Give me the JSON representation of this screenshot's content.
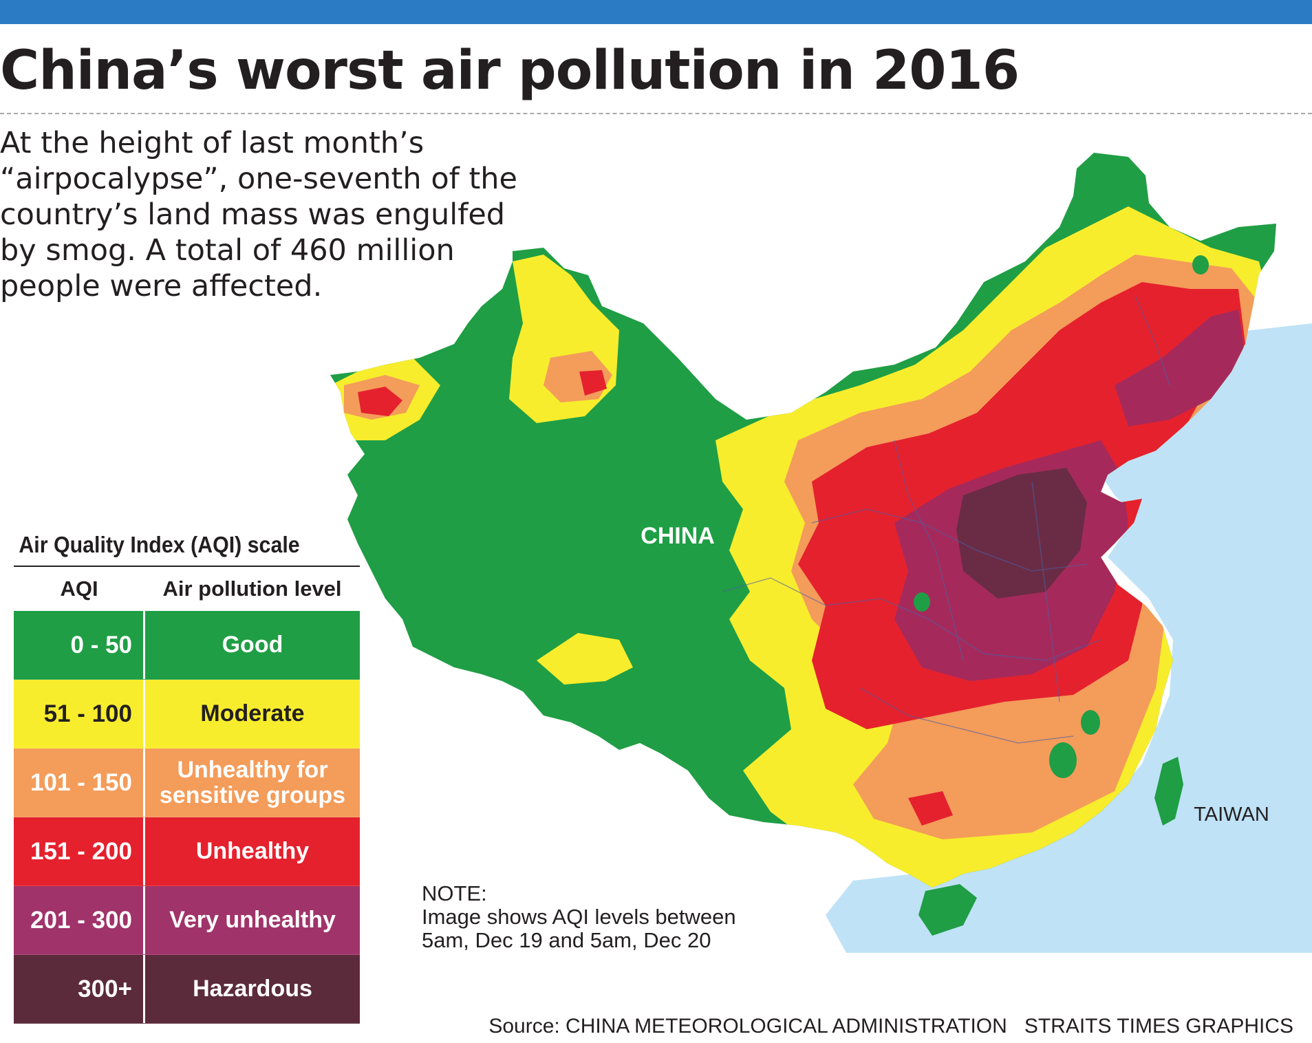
{
  "header": {
    "title": "China’s worst air pollution in 2016",
    "intro": "At the height of last month’s “airpocalypse”, one-seventh of the country’s land mass was engulfed by smog. A total of 460 million people were affected."
  },
  "colors": {
    "top_bar": "#2a7bc4",
    "sea": "#bfe2f6",
    "good": "#1f9e45",
    "moderate": "#f7ed2d",
    "usg": "#f49c5a",
    "unhealthy": "#e5212e",
    "very_unhealthy": "#a52a5b",
    "hazardous": "#5a2a3a"
  },
  "map": {
    "labels": {
      "country": "CHINA",
      "island": "TAIWAN"
    }
  },
  "legend": {
    "title": "Air Quality Index (AQI) scale",
    "col_aqi": "AQI",
    "col_level": "Air pollution level",
    "rows": [
      {
        "range": "0 - 50",
        "level": "Good",
        "bg": "#1f9e45",
        "fg": "#ffffff"
      },
      {
        "range": "51 - 100",
        "level": "Moderate",
        "bg": "#f7ed2d",
        "fg": "#231f20"
      },
      {
        "range": "101 - 150",
        "level": "Unhealthy for sensitive groups",
        "bg": "#f49c5a",
        "fg": "#ffffff"
      },
      {
        "range": "151 - 200",
        "level": "Unhealthy",
        "bg": "#e5212e",
        "fg": "#ffffff"
      },
      {
        "range": "201 - 300",
        "level": "Very unhealthy",
        "bg": "#a0336a",
        "fg": "#ffffff"
      },
      {
        "range": "300+",
        "level": "Hazardous",
        "bg": "#5b2b3b",
        "fg": "#ffffff"
      }
    ]
  },
  "note": {
    "heading": "NOTE:",
    "line1": "Image shows AQI levels between",
    "line2": "5am, Dec 19 and 5am, Dec 20"
  },
  "footer": {
    "source": "Source: CHINA METEOROLOGICAL ADMINISTRATION",
    "credit": "STRAITS TIMES GRAPHICS"
  }
}
